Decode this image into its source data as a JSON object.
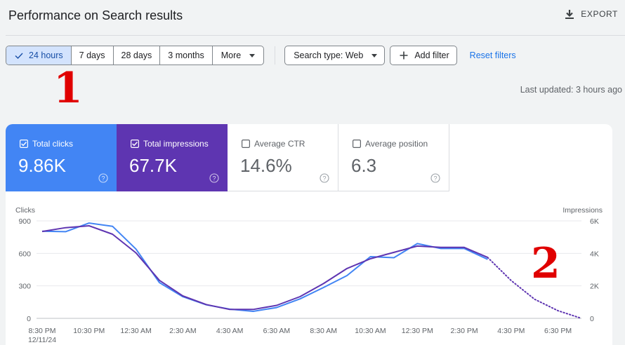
{
  "header": {
    "title": "Performance on Search results",
    "export_label": "EXPORT"
  },
  "filters": {
    "ranges": [
      {
        "label": "24 hours",
        "active": true
      },
      {
        "label": "7 days",
        "active": false
      },
      {
        "label": "28 days",
        "active": false
      },
      {
        "label": "3 months",
        "active": false
      }
    ],
    "more_label": "More",
    "search_type_label": "Search type: Web",
    "add_filter_label": "Add filter",
    "reset_label": "Reset filters"
  },
  "annotations": {
    "one": "1",
    "two": "2"
  },
  "last_updated": "Last updated: 3 hours ago",
  "metrics": {
    "clicks": {
      "label": "Total clicks",
      "value": "9.86K",
      "checked": true,
      "color": "#4285f4"
    },
    "impressions": {
      "label": "Total impressions",
      "value": "67.7K",
      "checked": true,
      "color": "#5e35b1"
    },
    "ctr": {
      "label": "Average CTR",
      "value": "14.6%",
      "checked": false
    },
    "position": {
      "label": "Average position",
      "value": "6.3",
      "checked": false
    }
  },
  "chart_data": {
    "type": "line",
    "left_axis": {
      "label": "Clicks",
      "ticks": [
        "900",
        "600",
        "300",
        "0"
      ],
      "range": [
        0,
        900
      ]
    },
    "right_axis": {
      "label": "Impressions",
      "ticks": [
        "6K",
        "4K",
        "2K",
        "0"
      ],
      "range": [
        0,
        6000
      ]
    },
    "x_tick_labels": [
      "8:30 PM",
      "10:30 PM",
      "12:30 AM",
      "2:30 AM",
      "4:30 AM",
      "6:30 AM",
      "8:30 AM",
      "10:30 AM",
      "12:30 PM",
      "2:30 PM",
      "4:30 PM",
      "6:30 PM"
    ],
    "x_date_label": "12/11/24",
    "x_hours_range": [
      0,
      23
    ],
    "grid": true,
    "series": [
      {
        "name": "Total clicks",
        "color": "#4285f4",
        "axis": "left",
        "hours": [
          0,
          1,
          2,
          3,
          4,
          5,
          6,
          7,
          8,
          9,
          10,
          11,
          12,
          13,
          14,
          15,
          16,
          17,
          18,
          19,
          20,
          21,
          22,
          23
        ],
        "values": [
          805,
          800,
          880,
          850,
          640,
          330,
          200,
          125,
          85,
          65,
          100,
          180,
          285,
          395,
          570,
          560,
          690,
          645,
          645,
          545,
          null,
          null,
          null,
          null
        ]
      },
      {
        "name": "Total impressions",
        "color": "#5e35b1",
        "axis": "right",
        "hours": [
          0,
          1,
          2,
          3,
          4,
          5,
          6,
          7,
          8,
          9,
          10,
          11,
          12,
          13,
          14,
          15,
          16,
          17,
          18,
          19,
          20,
          21,
          22,
          23
        ],
        "values": [
          5350,
          5580,
          5700,
          5180,
          4030,
          2340,
          1380,
          850,
          550,
          550,
          800,
          1340,
          2140,
          3070,
          3670,
          4060,
          4450,
          4370,
          4370,
          3750,
          2330,
          1180,
          470,
          0
        ],
        "projected_from_hour": 19
      }
    ]
  }
}
